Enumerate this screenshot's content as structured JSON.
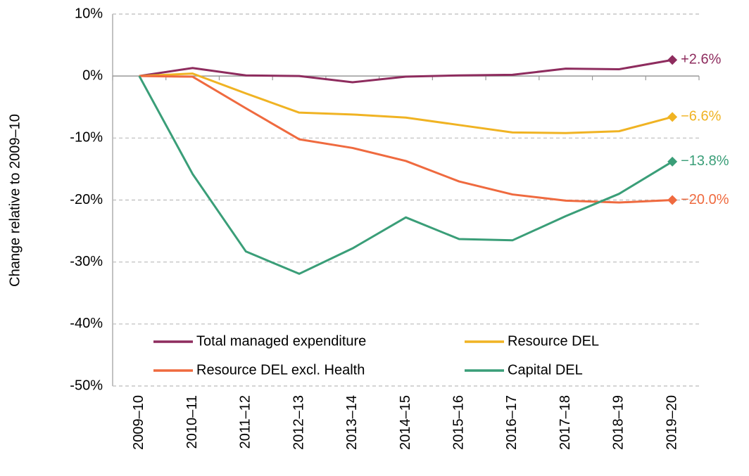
{
  "chart_data": {
    "type": "line",
    "y_label": "Change  relative to 2009–10",
    "categories": [
      "2009–10",
      "2010–11",
      "2011–12",
      "2012–13",
      "2013–14",
      "2014–15",
      "2015–16",
      "2016–17",
      "2017–18",
      "2018–19",
      "2019–20"
    ],
    "series": [
      {
        "name": "Total managed expenditure",
        "color": "#8e2c5e",
        "values": [
          0,
          1.3,
          0.1,
          0,
          -1.0,
          -0.1,
          0.1,
          0.2,
          1.2,
          1.1,
          2.6
        ],
        "value_labels": [
          null,
          null,
          null,
          null,
          null,
          null,
          null,
          null,
          null,
          null,
          "+2.6%"
        ]
      },
      {
        "name": "Resource DEL",
        "color": "#f0b323",
        "values": [
          0,
          0.4,
          -2.8,
          -5.9,
          -6.2,
          -6.7,
          -7.9,
          -9.1,
          -9.2,
          -8.9,
          -6.6
        ],
        "value_labels": [
          null,
          null,
          null,
          null,
          null,
          null,
          null,
          null,
          null,
          null,
          "−6.6%"
        ]
      },
      {
        "name": "Resource DEL excl. Health",
        "color": "#ef6a3f",
        "values": [
          0,
          -0.1,
          -5.2,
          -10.2,
          -11.6,
          -13.7,
          -17.0,
          -19.1,
          -20.1,
          -20.4,
          -20.0
        ],
        "value_labels": [
          null,
          null,
          null,
          null,
          null,
          null,
          null,
          null,
          null,
          null,
          "−20.0%"
        ]
      },
      {
        "name": "Capital DEL",
        "color": "#3a9e78",
        "values": [
          0,
          -15.8,
          -28.3,
          -31.9,
          -27.8,
          -22.8,
          -26.3,
          -26.5,
          -22.6,
          -19.0,
          -13.8
        ],
        "value_labels": [
          null,
          null,
          null,
          null,
          null,
          null,
          null,
          null,
          null,
          null,
          "−13.8%"
        ]
      }
    ],
    "ylim": [
      -50,
      10
    ],
    "yticks": [
      {
        "value": -50,
        "label": "-50%"
      },
      {
        "value": -40,
        "label": "-40%"
      },
      {
        "value": -30,
        "label": "-30%"
      },
      {
        "value": -20,
        "label": "-20%"
      },
      {
        "value": -10,
        "label": "-10%"
      },
      {
        "value": 0,
        "label": "0%"
      },
      {
        "value": 10,
        "label": "10%"
      }
    ],
    "grid": true,
    "legend": "bottom"
  }
}
